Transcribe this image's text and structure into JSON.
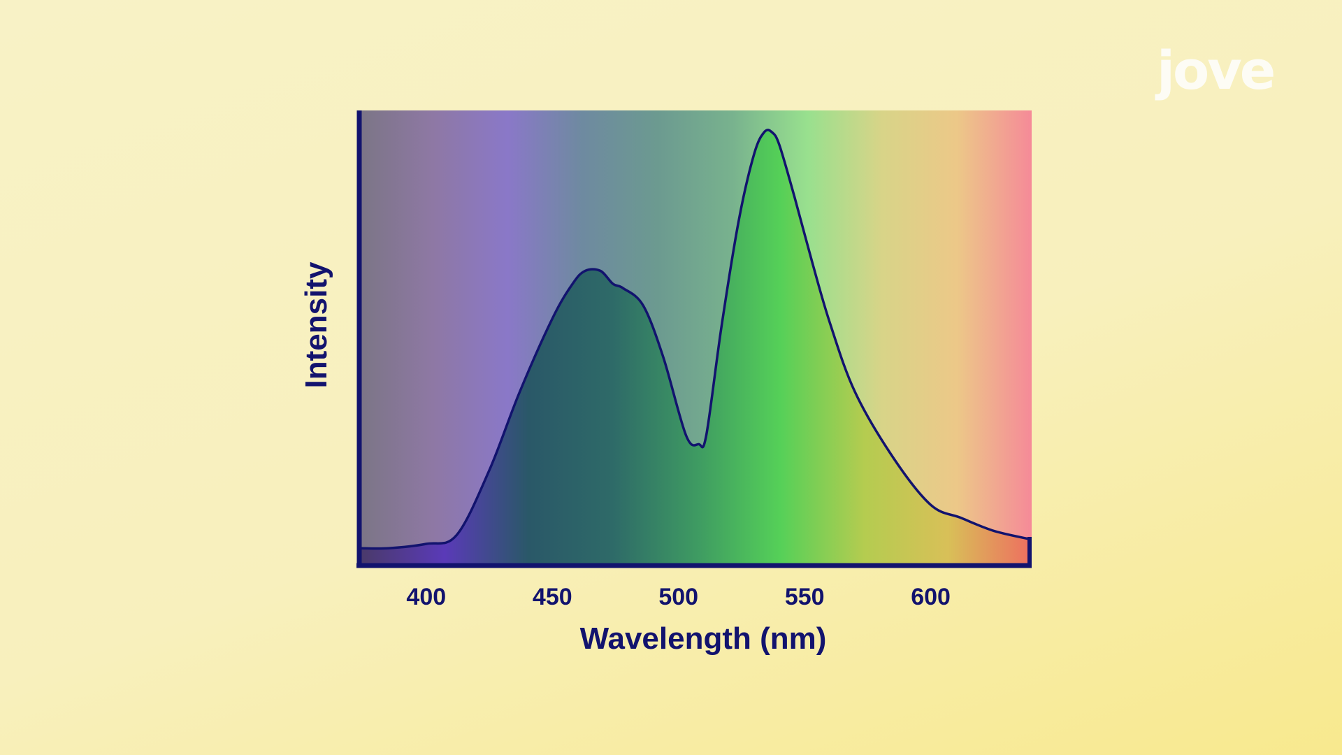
{
  "watermark": "jove",
  "colors": {
    "axis": "#12136e",
    "curve": "#12136e",
    "spectrum": [
      "#7b7585",
      "#8e78a4",
      "#8a78c8",
      "#6e8aa0",
      "#6c9a90",
      "#78b28e",
      "#98e08e",
      "#d8d488",
      "#ecc888",
      "#f58a98"
    ],
    "fill": [
      "#4a3a6a",
      "#5a3ab8",
      "#2a5868",
      "#2e6a68",
      "#3e9a62",
      "#55d058",
      "#b4cc50",
      "#d8c058",
      "#ee6e60"
    ]
  },
  "chart_data": {
    "type": "line",
    "title": "",
    "xlabel": "Wavelength (nm)",
    "ylabel": "Intensity",
    "xlim": [
      374,
      640
    ],
    "ylim": [
      0,
      1.05
    ],
    "xticks": [
      400,
      450,
      500,
      550,
      600
    ],
    "x_tick_labels": [
      "400",
      "450",
      "500",
      "550",
      "600"
    ],
    "grid": false,
    "legend": "none",
    "series": [
      {
        "x": [
          374,
          385,
          400,
          412,
          425,
          437,
          450,
          458,
          463,
          469,
          474,
          478,
          486,
          494,
          503,
          508,
          511,
          517,
          524,
          530,
          534,
          537,
          540,
          546,
          553,
          560,
          570,
          585,
          600,
          612,
          625,
          640
        ],
        "y": [
          0.04,
          0.04,
          0.05,
          0.07,
          0.22,
          0.4,
          0.57,
          0.65,
          0.68,
          0.68,
          0.65,
          0.64,
          0.6,
          0.48,
          0.3,
          0.28,
          0.3,
          0.55,
          0.8,
          0.95,
          1.0,
          1.0,
          0.97,
          0.85,
          0.7,
          0.56,
          0.4,
          0.25,
          0.14,
          0.11,
          0.08,
          0.06
        ]
      }
    ]
  }
}
